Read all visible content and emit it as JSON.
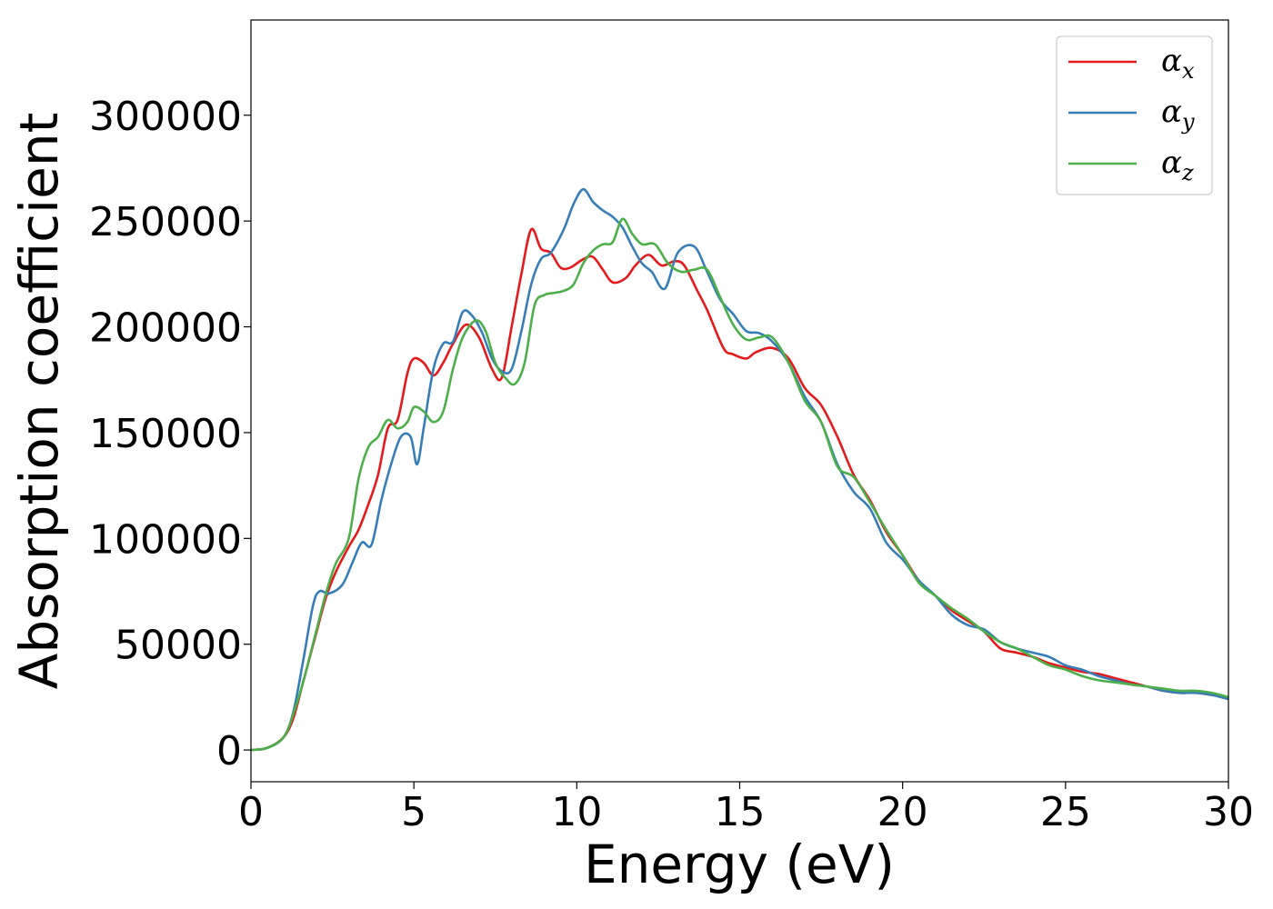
{
  "chart_data": {
    "type": "line",
    "xlabel": "Energy (eV)",
    "ylabel": "Absorption coefficient",
    "xlim": [
      0,
      30
    ],
    "ylim": [
      -15000,
      345000
    ],
    "xticks": [
      0,
      5,
      10,
      15,
      20,
      25,
      30
    ],
    "xtick_labels": [
      "0",
      "5",
      "10",
      "15",
      "20",
      "25",
      "30"
    ],
    "yticks": [
      0,
      50000,
      100000,
      150000,
      200000,
      250000,
      300000
    ],
    "ytick_labels": [
      "0",
      "50000",
      "100000",
      "150000",
      "200000",
      "250000",
      "300000"
    ],
    "grid": false,
    "legend_position": "top-right",
    "series": [
      {
        "name": "αx",
        "name_main": "α",
        "name_sub": "x",
        "color": "#e41a1c",
        "points": [
          [
            0,
            0
          ],
          [
            0.5,
            1000
          ],
          [
            1,
            6000
          ],
          [
            1.3,
            15000
          ],
          [
            1.6,
            32000
          ],
          [
            2,
            55000
          ],
          [
            2.3,
            72000
          ],
          [
            2.6,
            84000
          ],
          [
            3,
            96000
          ],
          [
            3.3,
            104000
          ],
          [
            3.6,
            116000
          ],
          [
            3.9,
            130000
          ],
          [
            4.2,
            152000
          ],
          [
            4.5,
            156000
          ],
          [
            4.8,
            178000
          ],
          [
            5,
            185000
          ],
          [
            5.3,
            183000
          ],
          [
            5.6,
            177000
          ],
          [
            5.9,
            183000
          ],
          [
            6.2,
            192000
          ],
          [
            6.6,
            201000
          ],
          [
            7,
            195000
          ],
          [
            7.4,
            180000
          ],
          [
            7.7,
            176000
          ],
          [
            8,
            200000
          ],
          [
            8.3,
            225000
          ],
          [
            8.6,
            246000
          ],
          [
            8.9,
            237000
          ],
          [
            9.2,
            235000
          ],
          [
            9.5,
            228000
          ],
          [
            9.8,
            228000
          ],
          [
            10.2,
            232000
          ],
          [
            10.5,
            233000
          ],
          [
            10.8,
            227000
          ],
          [
            11.1,
            221000
          ],
          [
            11.5,
            223000
          ],
          [
            11.8,
            229000
          ],
          [
            12.2,
            234000
          ],
          [
            12.6,
            229000
          ],
          [
            13,
            231000
          ],
          [
            13.3,
            229000
          ],
          [
            13.7,
            217000
          ],
          [
            14,
            208000
          ],
          [
            14.5,
            190000
          ],
          [
            14.8,
            187000
          ],
          [
            15.2,
            185000
          ],
          [
            15.5,
            188000
          ],
          [
            16,
            190000
          ],
          [
            16.5,
            185000
          ],
          [
            17,
            171000
          ],
          [
            17.5,
            163000
          ],
          [
            18,
            148000
          ],
          [
            18.5,
            130000
          ],
          [
            19,
            118000
          ],
          [
            19.5,
            103000
          ],
          [
            20,
            92000
          ],
          [
            20.5,
            80000
          ],
          [
            21,
            73000
          ],
          [
            21.5,
            66000
          ],
          [
            22,
            61000
          ],
          [
            22.5,
            56000
          ],
          [
            23,
            48000
          ],
          [
            23.5,
            46000
          ],
          [
            24,
            44000
          ],
          [
            24.5,
            41000
          ],
          [
            25,
            39000
          ],
          [
            25.5,
            37000
          ],
          [
            26,
            36000
          ],
          [
            26.5,
            34000
          ],
          [
            27,
            32000
          ],
          [
            27.5,
            30000
          ],
          [
            28,
            28000
          ],
          [
            28.5,
            27000
          ],
          [
            29,
            27000
          ],
          [
            29.5,
            26000
          ],
          [
            30,
            25000
          ]
        ]
      },
      {
        "name": "αy",
        "name_main": "α",
        "name_sub": "y",
        "color": "#377eb8",
        "points": [
          [
            0,
            0
          ],
          [
            0.5,
            1000
          ],
          [
            1,
            6000
          ],
          [
            1.3,
            18000
          ],
          [
            1.6,
            42000
          ],
          [
            1.9,
            68000
          ],
          [
            2.1,
            75000
          ],
          [
            2.4,
            74000
          ],
          [
            2.8,
            78000
          ],
          [
            3.1,
            88000
          ],
          [
            3.4,
            98000
          ],
          [
            3.7,
            97000
          ],
          [
            4,
            118000
          ],
          [
            4.3,
            135000
          ],
          [
            4.6,
            148000
          ],
          [
            4.9,
            148000
          ],
          [
            5.1,
            135000
          ],
          [
            5.3,
            152000
          ],
          [
            5.6,
            180000
          ],
          [
            5.9,
            192000
          ],
          [
            6.2,
            193000
          ],
          [
            6.5,
            207000
          ],
          [
            6.8,
            205000
          ],
          [
            7.1,
            197000
          ],
          [
            7.4,
            185000
          ],
          [
            7.7,
            179000
          ],
          [
            8,
            180000
          ],
          [
            8.3,
            198000
          ],
          [
            8.6,
            220000
          ],
          [
            8.9,
            232000
          ],
          [
            9.2,
            235000
          ],
          [
            9.6,
            246000
          ],
          [
            9.9,
            258000
          ],
          [
            10.2,
            265000
          ],
          [
            10.5,
            259000
          ],
          [
            10.8,
            255000
          ],
          [
            11.1,
            252000
          ],
          [
            11.4,
            247000
          ],
          [
            11.7,
            238000
          ],
          [
            12,
            230000
          ],
          [
            12.3,
            226000
          ],
          [
            12.7,
            218000
          ],
          [
            13.1,
            235000
          ],
          [
            13.6,
            238000
          ],
          [
            14,
            226000
          ],
          [
            14.4,
            213000
          ],
          [
            14.8,
            206000
          ],
          [
            15.2,
            198000
          ],
          [
            15.6,
            197000
          ],
          [
            16,
            193000
          ],
          [
            16.5,
            183000
          ],
          [
            17,
            167000
          ],
          [
            17.5,
            155000
          ],
          [
            18,
            135000
          ],
          [
            18.5,
            122000
          ],
          [
            19,
            114000
          ],
          [
            19.5,
            98000
          ],
          [
            20,
            90000
          ],
          [
            20.5,
            80000
          ],
          [
            21,
            73000
          ],
          [
            21.5,
            64000
          ],
          [
            22,
            59000
          ],
          [
            22.5,
            57000
          ],
          [
            23,
            51000
          ],
          [
            23.5,
            48000
          ],
          [
            24,
            46000
          ],
          [
            24.5,
            44000
          ],
          [
            25,
            40000
          ],
          [
            25.5,
            38000
          ],
          [
            26,
            35000
          ],
          [
            26.5,
            33000
          ],
          [
            27,
            31000
          ],
          [
            27.5,
            30000
          ],
          [
            28,
            28000
          ],
          [
            28.5,
            27000
          ],
          [
            29,
            27000
          ],
          [
            29.5,
            26000
          ],
          [
            30,
            24000
          ]
        ]
      },
      {
        "name": "αz",
        "name_main": "α",
        "name_sub": "z",
        "color": "#4daf4a",
        "points": [
          [
            0,
            0
          ],
          [
            0.5,
            1000
          ],
          [
            1,
            6000
          ],
          [
            1.3,
            17000
          ],
          [
            1.6,
            32000
          ],
          [
            2,
            56000
          ],
          [
            2.3,
            74000
          ],
          [
            2.6,
            88000
          ],
          [
            3,
            100000
          ],
          [
            3.3,
            128000
          ],
          [
            3.6,
            143000
          ],
          [
            3.9,
            148000
          ],
          [
            4.2,
            156000
          ],
          [
            4.5,
            152000
          ],
          [
            4.8,
            155000
          ],
          [
            5,
            162000
          ],
          [
            5.3,
            160000
          ],
          [
            5.6,
            155000
          ],
          [
            5.9,
            160000
          ],
          [
            6.2,
            180000
          ],
          [
            6.5,
            195000
          ],
          [
            6.9,
            203000
          ],
          [
            7.2,
            198000
          ],
          [
            7.5,
            183000
          ],
          [
            7.8,
            176000
          ],
          [
            8.1,
            173000
          ],
          [
            8.4,
            183000
          ],
          [
            8.7,
            210000
          ],
          [
            9,
            215000
          ],
          [
            9.3,
            216000
          ],
          [
            9.6,
            217000
          ],
          [
            9.9,
            220000
          ],
          [
            10.2,
            230000
          ],
          [
            10.5,
            236000
          ],
          [
            10.8,
            239000
          ],
          [
            11.1,
            240000
          ],
          [
            11.4,
            251000
          ],
          [
            11.7,
            244000
          ],
          [
            12,
            239000
          ],
          [
            12.4,
            239000
          ],
          [
            12.8,
            230000
          ],
          [
            13.2,
            226000
          ],
          [
            13.6,
            227000
          ],
          [
            14,
            227000
          ],
          [
            14.4,
            214000
          ],
          [
            14.8,
            201000
          ],
          [
            15.2,
            194000
          ],
          [
            15.6,
            195000
          ],
          [
            16,
            195000
          ],
          [
            16.5,
            183000
          ],
          [
            17,
            165000
          ],
          [
            17.5,
            155000
          ],
          [
            18,
            134000
          ],
          [
            18.5,
            129000
          ],
          [
            19,
            117000
          ],
          [
            19.5,
            104000
          ],
          [
            20,
            92000
          ],
          [
            20.5,
            79000
          ],
          [
            21,
            73000
          ],
          [
            21.5,
            67000
          ],
          [
            22,
            62000
          ],
          [
            22.5,
            56000
          ],
          [
            23,
            51000
          ],
          [
            23.5,
            48000
          ],
          [
            24,
            44000
          ],
          [
            24.5,
            40000
          ],
          [
            25,
            38000
          ],
          [
            25.5,
            35000
          ],
          [
            26,
            33000
          ],
          [
            26.5,
            32000
          ],
          [
            27,
            31000
          ],
          [
            27.5,
            30000
          ],
          [
            28,
            29000
          ],
          [
            28.5,
            28000
          ],
          [
            29,
            28000
          ],
          [
            29.5,
            27000
          ],
          [
            30,
            25000
          ]
        ]
      }
    ]
  }
}
